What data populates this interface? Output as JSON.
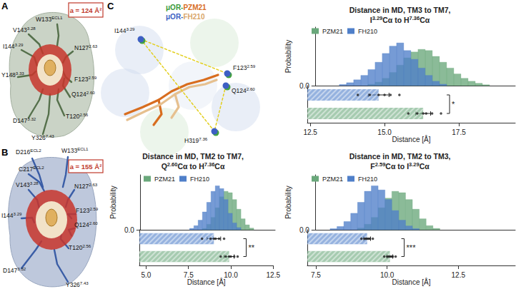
{
  "figure": {
    "panels": [
      {
        "label": "A",
        "area": "a = 124 Å²",
        "residues": [
          "W133ECL1",
          "V1433.28",
          "I1443.29",
          "N1272.63",
          "Y1483.33",
          "F1232.59",
          "Q1242.60",
          "T1202.56",
          "D1473.32",
          "Y3267.43"
        ]
      },
      {
        "label": "B",
        "area": "a = 155 Å²",
        "residues": [
          "D216ECL2",
          "W133ECL1",
          "C217ECL2",
          "V1433.28",
          "N1272.63",
          "F1232.59",
          "I1443.29",
          "Q1242.60",
          "T1202.56",
          "D1473.32",
          "Y3267.43"
        ]
      },
      {
        "label": "C",
        "structures": [
          "μOR-PZM21",
          "μOR-FH210"
        ],
        "residues": [
          "I1443.29",
          "F1232.59",
          "Q1242.60",
          "H3197.36"
        ]
      }
    ]
  },
  "chart_data": [
    {
      "type": "histogram",
      "title": "Distance in MD, TM3 to TM7,\nI3.29Cα to H7.36Cα",
      "xlabel": "Distance [Å]",
      "ylabel": "Probability",
      "xlim": [
        12.4,
        19.4
      ],
      "xticks": [
        12.5,
        {
          "value": 15,
          "label": "15.0"
        },
        17.5
      ],
      "ylim": [
        0,
        0.2
      ],
      "yticks": [
        {
          "value": 0,
          "label": "0.0"
        }
      ],
      "legend": "upper left",
      "series": [
        {
          "name": "PZM21",
          "color": "#6aa87b",
          "bins": [
            14.25,
            14.5,
            14.75,
            15,
            15.25,
            15.5,
            15.75,
            16,
            16.25,
            16.5,
            16.75,
            17,
            17.25,
            17.5,
            17.75,
            18,
            18.25,
            18.5
          ],
          "values": [
            0.005,
            0.012,
            0.025,
            0.045,
            0.07,
            0.095,
            0.115,
            0.124,
            0.12,
            0.1,
            0.08,
            0.06,
            0.04,
            0.025,
            0.015,
            0.008,
            0.003
          ]
        },
        {
          "name": "FH210",
          "color": "#4f7fc9",
          "bins": [
            13.25,
            13.5,
            13.75,
            14,
            14.25,
            14.5,
            14.75,
            15,
            15.25,
            15.5,
            15.75,
            16,
            16.25,
            16.5,
            16.75,
            17
          ],
          "values": [
            0.004,
            0.01,
            0.02,
            0.035,
            0.055,
            0.08,
            0.11,
            0.135,
            0.146,
            0.12,
            0.09,
            0.06,
            0.035,
            0.015,
            0.005
          ]
        }
      ],
      "summary": [
        {
          "name": "FH210",
          "mean": 14.8,
          "error": 0.35,
          "points": [
            14.1,
            14.5,
            14.8,
            15.0,
            15.2,
            15.5
          ]
        },
        {
          "name": "PZM21",
          "mean": 16.3,
          "error": 0.25,
          "points": [
            15.8,
            16.1,
            16.3,
            16.4,
            16.6,
            16.9
          ]
        }
      ],
      "significance": "*"
    },
    {
      "type": "histogram",
      "title": "Distance in MD, TM2 to TM7,\nQ2.60Cα to H7.36Cα",
      "xlabel": "Distance [Å]",
      "ylabel": "Probability",
      "xlim": [
        4.6,
        12.5
      ],
      "xticks": [
        {
          "value": 5,
          "label": "5.0"
        },
        7.5,
        {
          "value": 10,
          "label": "10.0"
        },
        12.5
      ],
      "ylim": [
        0,
        0.2
      ],
      "yticks": [
        {
          "value": 0,
          "label": "0.0"
        }
      ],
      "legend": "upper left",
      "series": [
        {
          "name": "PZM21",
          "color": "#6aa87b",
          "bins": [
            8.25,
            8.5,
            8.75,
            9,
            9.25,
            9.5,
            9.75,
            10,
            10.25,
            10.5,
            10.75,
            11,
            11.25
          ],
          "values": [
            0.005,
            0.02,
            0.045,
            0.08,
            0.12,
            0.14,
            0.135,
            0.11,
            0.075,
            0.04,
            0.018,
            0.006
          ]
        },
        {
          "name": "FH210",
          "color": "#4f7fc9",
          "bins": [
            7.5,
            7.75,
            8,
            8.25,
            8.5,
            8.75,
            9,
            9.25,
            9.5,
            9.75,
            10,
            10.25,
            10.5
          ],
          "values": [
            0.005,
            0.015,
            0.035,
            0.065,
            0.1,
            0.14,
            0.16,
            0.15,
            0.11,
            0.06,
            0.025,
            0.008
          ]
        }
      ],
      "summary": [
        {
          "name": "FH210",
          "mean": 9.0,
          "error": 0.4,
          "points": [
            8.3,
            8.8,
            9.0,
            9.1,
            9.3,
            9.6
          ]
        },
        {
          "name": "PZM21",
          "mean": 9.9,
          "error": 0.3,
          "points": [
            9.4,
            9.7,
            9.9,
            10.0,
            10.2,
            10.4
          ]
        }
      ],
      "significance": "**"
    },
    {
      "type": "histogram",
      "title": "Distance in MD, TM2 to TM3,\nF2.59Cα to I3.29Cα",
      "xlabel": "Distance [Å]",
      "ylabel": "Probability",
      "xlim": [
        7.2,
        14.5
      ],
      "xticks": [
        7.5,
        {
          "value": 10,
          "label": "10.0"
        },
        12.5
      ],
      "ylim": [
        0,
        0.2
      ],
      "yticks": [
        {
          "value": 0,
          "label": "0.0"
        }
      ],
      "legend": "upper left",
      "series": [
        {
          "name": "PZM21",
          "color": "#6aa87b",
          "bins": [
            8.75,
            9,
            9.25,
            9.5,
            9.75,
            10,
            10.25,
            10.5,
            10.75,
            11,
            11.25,
            11.5,
            11.75
          ],
          "values": [
            0.006,
            0.02,
            0.045,
            0.08,
            0.115,
            0.14,
            0.135,
            0.11,
            0.075,
            0.04,
            0.015,
            0.005
          ]
        },
        {
          "name": "FH210",
          "color": "#4f7fc9",
          "bins": [
            7.75,
            8,
            8.25,
            8.5,
            8.75,
            9,
            9.25,
            9.5,
            9.75,
            10,
            10.25,
            10.5,
            10.75,
            11
          ],
          "values": [
            0.004,
            0.012,
            0.03,
            0.06,
            0.1,
            0.14,
            0.16,
            0.145,
            0.11,
            0.07,
            0.035,
            0.014,
            0.004
          ]
        }
      ],
      "summary": [
        {
          "name": "FH210",
          "mean": 9.3,
          "error": 0.12,
          "points": [
            9.1,
            9.2,
            9.25,
            9.3,
            9.35,
            9.4,
            9.5
          ]
        },
        {
          "name": "PZM21",
          "mean": 10.1,
          "error": 0.1,
          "points": [
            9.9,
            10.0,
            10.05,
            10.1,
            10.15,
            10.2,
            10.3
          ]
        }
      ],
      "significance": "***"
    }
  ]
}
